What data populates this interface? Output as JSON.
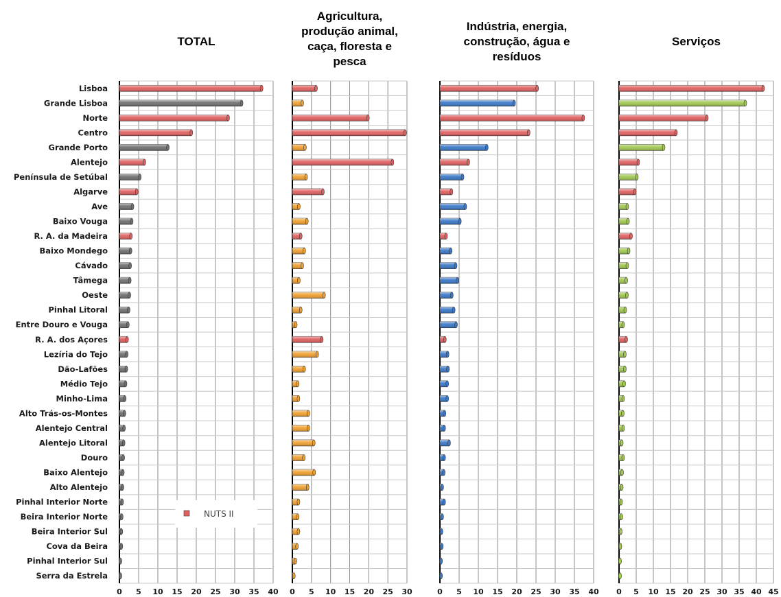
{
  "chart_data": {
    "type": "bar",
    "orientation": "horizontal",
    "categories": [
      "Lisboa",
      "Grande Lisboa",
      "Norte",
      "Centro",
      "Grande Porto",
      "Alentejo",
      "Península de Setúbal",
      "Algarve",
      "Ave",
      "Baixo Vouga",
      "R. A. da Madeira",
      "Baixo Mondego",
      "Cávado",
      "Tâmega",
      "Oeste",
      "Pinhal Litoral",
      "Entre Douro e Vouga",
      "R. A. dos Açores",
      "Lezíria do Tejo",
      "Dão-Lafões",
      "Médio Tejo",
      "Minho-Lima",
      "Alto Trás-os-Montes",
      "Alentejo Central",
      "Alentejo Litoral",
      "Douro",
      "Baixo Alentejo",
      "Alto Alentejo",
      "Pinhal Interior Norte",
      "Beira Interior Norte",
      "Beira Interior Sul",
      "Cova da Beira",
      "Pinhal Interior Sul",
      "Serra da Estrela"
    ],
    "nuts2": [
      "Lisboa",
      "Norte",
      "Centro",
      "Alentejo",
      "Algarve",
      "R. A. da Madeira",
      "R. A. dos Açores"
    ],
    "legend": {
      "label": "NUTS II",
      "color": "#e06060",
      "position": "bottom-right of TOTAL panel"
    },
    "grid": true,
    "panels": [
      {
        "title": [
          "TOTAL"
        ],
        "xlim": [
          0,
          40
        ],
        "ticks": [
          0,
          5,
          10,
          15,
          20,
          25,
          30,
          35,
          40
        ],
        "highlight_color": "#707070",
        "values": [
          37.0,
          31.8,
          28.3,
          18.7,
          12.6,
          6.5,
          5.3,
          4.5,
          3.4,
          3.2,
          3.0,
          2.9,
          2.8,
          2.7,
          2.6,
          2.4,
          2.2,
          2.0,
          1.9,
          1.8,
          1.6,
          1.4,
          1.3,
          1.2,
          1.1,
          1.0,
          0.9,
          0.8,
          0.7,
          0.6,
          0.5,
          0.5,
          0.2,
          0.1
        ]
      },
      {
        "title": [
          "Agricultura,",
          "produção animal,",
          "caça, floresta e",
          "pesca"
        ],
        "xlim": [
          0,
          30
        ],
        "ticks": [
          0,
          5,
          10,
          15,
          20,
          25,
          30
        ],
        "highlight_color": "#f0a030",
        "values": [
          6.2,
          2.6,
          19.8,
          29.5,
          3.3,
          26.2,
          3.6,
          8.0,
          1.7,
          3.8,
          2.2,
          3.1,
          2.6,
          1.7,
          8.3,
          2.2,
          0.9,
          7.7,
          6.5,
          3.1,
          1.4,
          1.6,
          4.2,
          4.2,
          5.6,
          3.0,
          5.7,
          4.0,
          1.6,
          1.4,
          1.6,
          1.2,
          0.8,
          0.4
        ]
      },
      {
        "title": [
          "Indústria, energia,",
          "construção, água e",
          "resíduos"
        ],
        "xlim": [
          0,
          40
        ],
        "ticks": [
          0,
          5,
          10,
          15,
          20,
          25,
          30,
          35,
          40
        ],
        "highlight_color": "#3a78c8",
        "values": [
          25.3,
          19.3,
          37.3,
          23.1,
          12.2,
          7.4,
          5.9,
          3.0,
          6.6,
          5.2,
          1.6,
          2.8,
          4.1,
          4.6,
          3.1,
          3.6,
          4.2,
          1.3,
          2.0,
          2.1,
          1.9,
          1.9,
          1.2,
          1.1,
          2.4,
          1.1,
          1.0,
          0.6,
          1.1,
          0.6,
          0.4,
          0.5,
          0.3,
          0.3
        ]
      },
      {
        "title": [
          "Serviços"
        ],
        "xlim": [
          0,
          45
        ],
        "ticks": [
          0,
          5,
          10,
          15,
          20,
          25,
          30,
          35,
          40,
          45
        ],
        "highlight_color": "#a0c850",
        "values": [
          42.0,
          36.8,
          25.6,
          16.6,
          13.0,
          5.6,
          5.2,
          4.6,
          2.4,
          2.6,
          3.5,
          2.8,
          2.4,
          2.1,
          2.3,
          1.8,
          1.2,
          2.1,
          1.7,
          1.7,
          1.5,
          1.2,
          1.1,
          1.2,
          0.8,
          1.2,
          0.9,
          0.8,
          0.6,
          0.7,
          0.5,
          0.4,
          0.2,
          0.2
        ]
      }
    ]
  }
}
